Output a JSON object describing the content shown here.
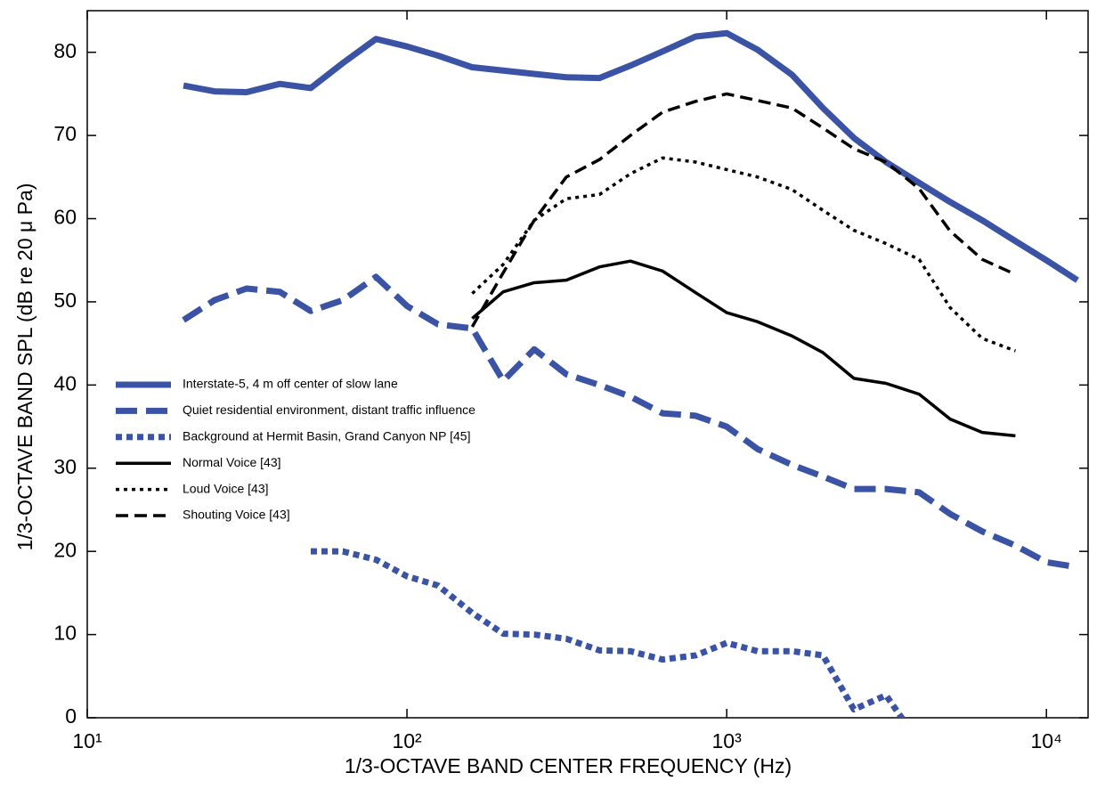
{
  "chart_data": {
    "type": "line",
    "xlabel": "1/3-OCTAVE BAND CENTER FREQUENCY (Hz)",
    "ylabel": "1/3-OCTAVE BAND SPL (dB re 20 μ Pa)",
    "xscale": "log",
    "x": [
      20,
      25,
      31.5,
      40,
      50,
      63,
      80,
      100,
      125,
      160,
      200,
      250,
      315,
      400,
      500,
      630,
      800,
      1000,
      1250,
      1600,
      2000,
      2500,
      3150,
      4000,
      5000,
      6300,
      8000,
      10000,
      12500
    ],
    "xlim": [
      10,
      13500
    ],
    "xticks": [
      {
        "value": 10,
        "label": "10¹"
      },
      {
        "value": 100,
        "label": "10²"
      },
      {
        "value": 1000,
        "label": "10³"
      },
      {
        "value": 10000,
        "label": "10⁴"
      }
    ],
    "ylim": [
      0,
      85
    ],
    "yticks": [
      0,
      10,
      20,
      30,
      40,
      50,
      60,
      70,
      80
    ],
    "legend": "center-left",
    "series": [
      {
        "name": "Interstate-5, 4 m off center of slow lane",
        "color": "#3b53a4",
        "linestyle": "solid",
        "weight": "heavy",
        "values": [
          76,
          75.3,
          75.2,
          76.2,
          75.7,
          78.7,
          81.6,
          80.7,
          79.6,
          78.2,
          77.8,
          77.4,
          77,
          76.9,
          78.4,
          80.1,
          81.9,
          82.3,
          80.3,
          77.3,
          73.3,
          69.7,
          66.8,
          64.3,
          62,
          59.8,
          57.3,
          55,
          52.6
        ]
      },
      {
        "name": "Quiet residential environment, distant traffic influence",
        "color": "#3b53a4",
        "linestyle": "dashed",
        "weight": "heavy",
        "values": [
          47.8,
          50.2,
          51.6,
          51.2,
          48.9,
          50.2,
          53,
          49.5,
          47.3,
          46.8,
          40.5,
          44.3,
          41.3,
          40,
          38.6,
          36.6,
          36.3,
          35,
          32.3,
          30.4,
          29,
          27.5,
          27.5,
          27.1,
          24.5,
          22.4,
          20.7,
          18.7,
          18.1
        ]
      },
      {
        "name": "Background at Hermit Basin, Grand Canyon NP [45]",
        "color": "#3b53a4",
        "linestyle": "dotted",
        "weight": "heavy",
        "values": [
          null,
          null,
          null,
          null,
          20,
          20,
          19,
          17,
          15.9,
          12.6,
          10.1,
          10,
          9.5,
          8.1,
          8,
          7,
          7.5,
          9,
          8,
          8,
          7.5,
          1,
          2.7,
          -3,
          null,
          null,
          null,
          null,
          null
        ]
      },
      {
        "name": "Normal Voice [43]",
        "color": "#000000",
        "linestyle": "solid",
        "weight": "normal",
        "values": [
          null,
          null,
          null,
          null,
          null,
          null,
          null,
          null,
          null,
          48,
          51.2,
          52.3,
          52.6,
          54.2,
          54.9,
          53.7,
          51.1,
          48.7,
          47.6,
          45.9,
          43.9,
          40.8,
          40.2,
          38.9,
          35.9,
          34.3,
          33.9,
          null,
          null
        ]
      },
      {
        "name": "Loud Voice [43]",
        "color": "#000000",
        "linestyle": "dotted",
        "weight": "normal",
        "values": [
          null,
          null,
          null,
          null,
          null,
          null,
          null,
          null,
          null,
          51,
          54.5,
          59.8,
          62.4,
          62.9,
          65.4,
          67.3,
          66.8,
          65.9,
          65,
          63.5,
          61,
          58.6,
          57,
          55.1,
          49.3,
          45.6,
          44.1,
          null,
          null
        ]
      },
      {
        "name": "Shouting Voice [43]",
        "color": "#000000",
        "linestyle": "dashed",
        "weight": "normal",
        "values": [
          null,
          null,
          null,
          null,
          null,
          null,
          null,
          null,
          null,
          47,
          53.5,
          59.8,
          65,
          67.1,
          70,
          72.8,
          74.1,
          75,
          74.2,
          73.3,
          70.9,
          68.4,
          66.8,
          63.6,
          58.5,
          55.1,
          53.3,
          null,
          null
        ]
      }
    ]
  }
}
